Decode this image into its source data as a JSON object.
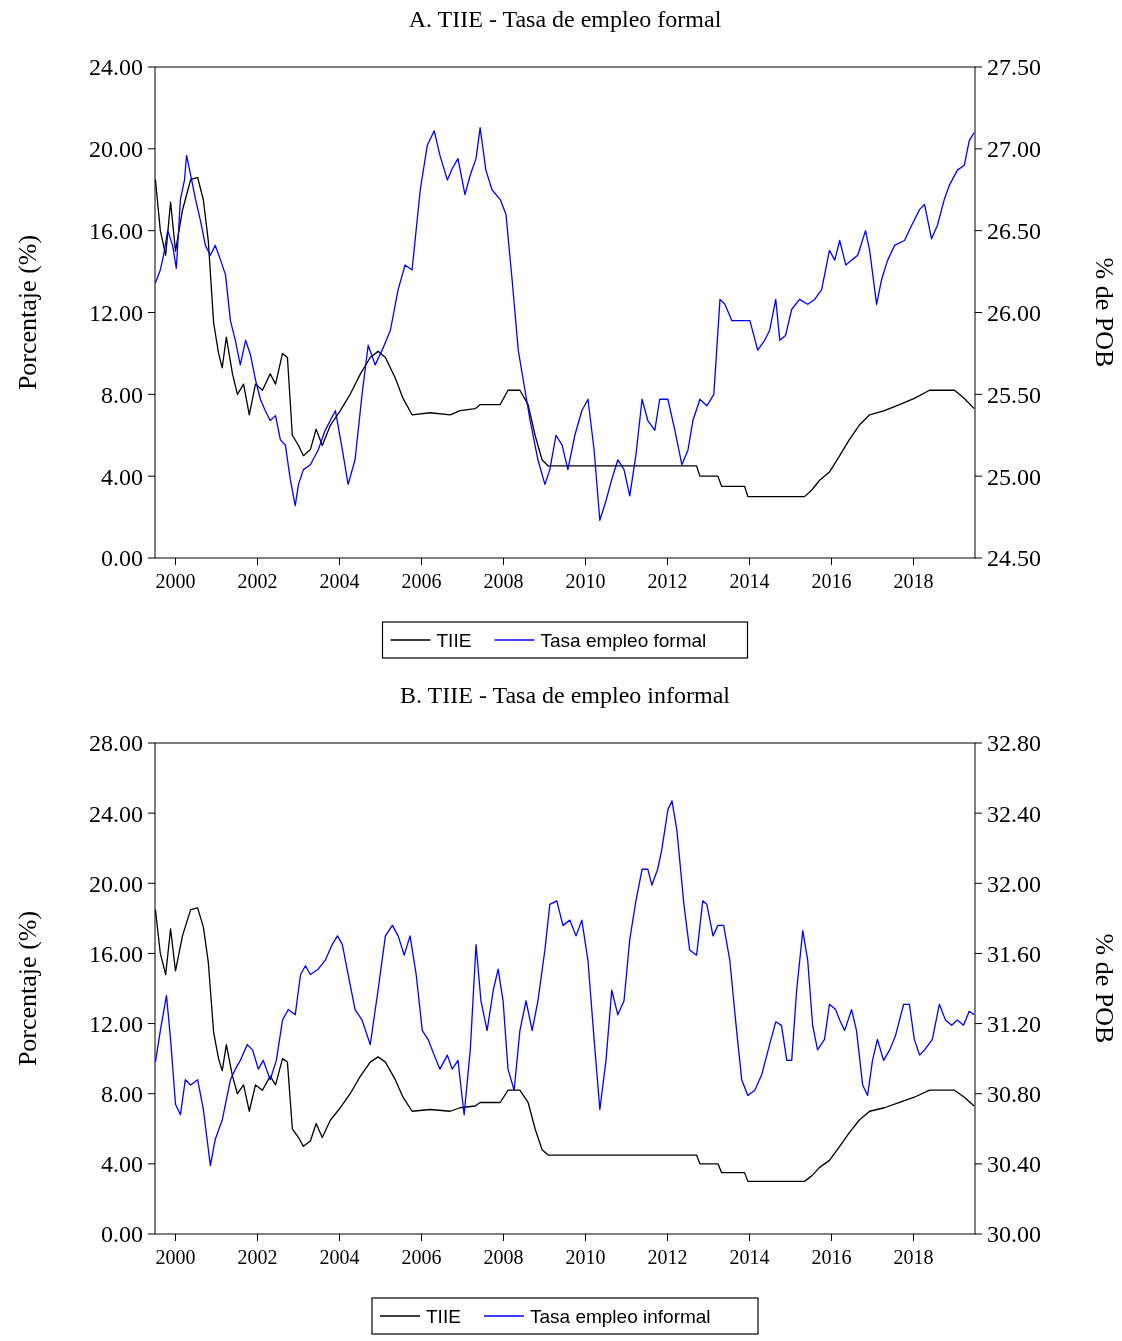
{
  "chart_data": [
    {
      "type": "line",
      "title": "A. TIIE - Tasa de empleo formal",
      "ylabel": "Porcentaje (%)",
      "y2label": "% de POB",
      "legend": "bottom",
      "grid": false,
      "line_style": "solid",
      "xlim": [
        1999.5,
        2019.5
      ],
      "xticks": [
        2000,
        2002,
        2004,
        2006,
        2008,
        2010,
        2012,
        2014,
        2016,
        2018
      ],
      "ylim": [
        0,
        24
      ],
      "yticks": [
        {
          "value": 0,
          "label": "0.00"
        },
        {
          "value": 4,
          "label": "4.00"
        },
        {
          "value": 8,
          "label": "8.00"
        },
        {
          "value": 12,
          "label": "12.00"
        },
        {
          "value": 16,
          "label": "16.00"
        },
        {
          "value": 20,
          "label": "20.00"
        },
        {
          "value": 24,
          "label": "24.00"
        }
      ],
      "y2lim": [
        24.5,
        27.5
      ],
      "y2ticks": [
        {
          "value": 24.5,
          "label": "24.50"
        },
        {
          "value": 25,
          "label": "25.00"
        },
        {
          "value": 25.5,
          "label": "25.50"
        },
        {
          "value": 26,
          "label": "26.00"
        },
        {
          "value": 26.5,
          "label": "26.50"
        },
        {
          "value": 27,
          "label": "27.00"
        },
        {
          "value": 27.5,
          "label": "27.50"
        }
      ],
      "series": [
        {
          "name": "TIIE",
          "color": "#000000",
          "x": [
            1999.51,
            1999.63,
            1999.76,
            1999.88,
            2000.0,
            2000.17,
            2000.37,
            2000.54,
            2000.68,
            2000.8,
            2000.93,
            2001.05,
            2001.14,
            2001.24,
            2001.39,
            2001.51,
            2001.66,
            2001.8,
            2001.95,
            2002.12,
            2002.31,
            2002.44,
            2002.61,
            2002.73,
            2002.85,
            2003.0,
            2003.12,
            2003.29,
            2003.43,
            2003.58,
            2003.78,
            2004.02,
            2004.26,
            2004.51,
            2004.75,
            2004.94,
            2005.12,
            2005.36,
            2005.55,
            2005.77,
            2006.21,
            2006.7,
            2006.94,
            2007.31,
            2007.43,
            2007.92,
            2008.11,
            2008.4,
            2008.6,
            2008.77,
            2008.94,
            2009.09,
            2012.71,
            2012.79,
            2013.23,
            2013.32,
            2013.88,
            2013.96,
            2015.34,
            2015.51,
            2015.71,
            2015.95,
            2016.2,
            2016.44,
            2016.68,
            2016.93,
            2017.29,
            2017.66,
            2018.02,
            2018.39,
            2019.0,
            2019.24,
            2019.48
          ],
          "values": [
            18.5,
            16,
            14.8,
            17.4,
            15,
            17,
            18.5,
            18.6,
            17.5,
            15.5,
            11.5,
            10,
            9.3,
            10.8,
            9,
            8,
            8.5,
            7,
            8.5,
            8.2,
            9,
            8.5,
            10,
            9.8,
            6,
            5.5,
            5,
            5.3,
            6.3,
            5.5,
            6.5,
            7.2,
            8,
            9,
            9.8,
            10.1,
            9.8,
            8.8,
            7.8,
            7,
            7.1,
            7,
            7.2,
            7.3,
            7.5,
            7.5,
            8.2,
            8.2,
            7.5,
            6,
            4.8,
            4.5,
            4.5,
            4,
            4,
            3.5,
            3.5,
            3,
            3,
            3.3,
            3.8,
            4.2,
            5,
            5.8,
            6.5,
            7,
            7.2,
            7.5,
            7.8,
            8.2,
            8.2,
            7.8,
            7.3
          ]
        },
        {
          "name": "Tasa empleo formal",
          "color": "#0000ff",
          "axis": "y2",
          "x": [
            1999.51,
            1999.63,
            1999.71,
            1999.81,
            1999.93,
            2000.02,
            2000.12,
            2000.22,
            2000.27,
            2000.37,
            2000.49,
            2000.61,
            2000.73,
            2000.85,
            2000.97,
            2001.1,
            2001.22,
            2001.34,
            2001.46,
            2001.58,
            2001.71,
            2001.83,
            2001.95,
            2002.07,
            2002.19,
            2002.31,
            2002.44,
            2002.56,
            2002.68,
            2002.8,
            2002.92,
            2003.0,
            2003.12,
            2003.29,
            2003.48,
            2003.65,
            2003.9,
            2004.07,
            2004.21,
            2004.38,
            2004.55,
            2004.7,
            2004.87,
            2005.04,
            2005.24,
            2005.43,
            2005.6,
            2005.77,
            2005.97,
            2006.14,
            2006.31,
            2006.45,
            2006.63,
            2006.75,
            2006.89,
            2007.06,
            2007.19,
            2007.33,
            2007.43,
            2007.57,
            2007.72,
            2007.92,
            2008.06,
            2008.21,
            2008.36,
            2008.5,
            2008.65,
            2008.84,
            2009.01,
            2009.13,
            2009.28,
            2009.43,
            2009.57,
            2009.74,
            2009.91,
            2010.06,
            2010.21,
            2010.35,
            2010.5,
            2010.64,
            2010.79,
            2010.94,
            2011.08,
            2011.23,
            2011.38,
            2011.52,
            2011.69,
            2011.81,
            2012.01,
            2012.18,
            2012.35,
            2012.5,
            2012.62,
            2012.79,
            2012.96,
            2013.13,
            2013.28,
            2013.4,
            2013.57,
            2013.76,
            2014.01,
            2014.2,
            2014.37,
            2014.49,
            2014.64,
            2014.74,
            2014.88,
            2015.03,
            2015.22,
            2015.42,
            2015.59,
            2015.76,
            2015.95,
            2016.08,
            2016.2,
            2016.35,
            2016.49,
            2016.64,
            2016.83,
            2016.93,
            2017.1,
            2017.22,
            2017.37,
            2017.54,
            2017.78,
            2017.95,
            2018.15,
            2018.27,
            2018.44,
            2018.58,
            2018.75,
            2018.88,
            2019.07,
            2019.24,
            2019.36,
            2019.48
          ],
          "values": [
            26.18,
            26.26,
            26.35,
            26.5,
            26.41,
            26.27,
            26.69,
            26.81,
            26.96,
            26.84,
            26.69,
            26.56,
            26.41,
            26.35,
            26.41,
            26.32,
            26.23,
            25.95,
            25.83,
            25.68,
            25.83,
            25.74,
            25.59,
            25.47,
            25.4,
            25.34,
            25.37,
            25.22,
            25.19,
            24.98,
            24.82,
            24.95,
            25.04,
            25.07,
            25.16,
            25.28,
            25.4,
            25.16,
            24.95,
            25.1,
            25.5,
            25.8,
            25.68,
            25.77,
            25.89,
            26.14,
            26.29,
            26.26,
            26.75,
            27.02,
            27.11,
            26.96,
            26.81,
            26.88,
            26.94,
            26.72,
            26.84,
            26.94,
            27.13,
            26.87,
            26.75,
            26.69,
            26.6,
            26.2,
            25.77,
            25.56,
            25.34,
            25.1,
            24.95,
            25.04,
            25.25,
            25.19,
            25.04,
            25.25,
            25.4,
            25.47,
            25.16,
            24.73,
            24.85,
            24.98,
            25.1,
            25.04,
            24.88,
            25.13,
            25.47,
            25.34,
            25.28,
            25.47,
            25.47,
            25.28,
            25.07,
            25.16,
            25.34,
            25.47,
            25.43,
            25.5,
            26.08,
            26.05,
            25.95,
            25.95,
            25.95,
            25.77,
            25.83,
            25.89,
            26.08,
            25.83,
            25.86,
            26.02,
            26.08,
            26.05,
            26.08,
            26.14,
            26.38,
            26.32,
            26.44,
            26.29,
            26.32,
            26.35,
            26.5,
            26.38,
            26.05,
            26.2,
            26.32,
            26.41,
            26.44,
            26.53,
            26.63,
            26.66,
            26.45,
            26.53,
            26.69,
            26.78,
            26.87,
            26.9,
            27.05,
            27.1
          ]
        }
      ]
    },
    {
      "type": "line",
      "title": "B. TIIE - Tasa de empleo informal",
      "ylabel": "Porcentaje (%)",
      "y2label": "% de POB",
      "legend": "bottom",
      "grid": false,
      "line_style": "solid",
      "xlim": [
        1999.5,
        2019.5
      ],
      "xticks": [
        2000,
        2002,
        2004,
        2006,
        2008,
        2010,
        2012,
        2014,
        2016,
        2018
      ],
      "ylim": [
        0,
        28
      ],
      "yticks": [
        {
          "value": 0,
          "label": "0.00"
        },
        {
          "value": 4,
          "label": "4.00"
        },
        {
          "value": 8,
          "label": "8.00"
        },
        {
          "value": 12,
          "label": "12.00"
        },
        {
          "value": 16,
          "label": "16.00"
        },
        {
          "value": 20,
          "label": "20.00"
        },
        {
          "value": 24,
          "label": "24.00"
        },
        {
          "value": 28,
          "label": "28.00"
        }
      ],
      "y2lim": [
        30,
        32.8
      ],
      "y2ticks": [
        {
          "value": 30,
          "label": "30.00"
        },
        {
          "value": 30.4,
          "label": "30.40"
        },
        {
          "value": 30.8,
          "label": "30.80"
        },
        {
          "value": 31.2,
          "label": "31.20"
        },
        {
          "value": 31.6,
          "label": "31.60"
        },
        {
          "value": 32,
          "label": "32.00"
        },
        {
          "value": 32.4,
          "label": "32.40"
        },
        {
          "value": 32.8,
          "label": "32.80"
        }
      ],
      "series": [
        {
          "name": "TIIE",
          "color": "#000000",
          "x": [
            1999.51,
            1999.63,
            1999.76,
            1999.88,
            2000.0,
            2000.17,
            2000.37,
            2000.54,
            2000.68,
            2000.8,
            2000.93,
            2001.05,
            2001.14,
            2001.24,
            2001.39,
            2001.51,
            2001.66,
            2001.8,
            2001.95,
            2002.12,
            2002.31,
            2002.44,
            2002.61,
            2002.73,
            2002.85,
            2003.0,
            2003.12,
            2003.29,
            2003.43,
            2003.58,
            2003.78,
            2004.02,
            2004.26,
            2004.51,
            2004.75,
            2004.94,
            2005.12,
            2005.36,
            2005.55,
            2005.77,
            2006.21,
            2006.7,
            2006.94,
            2007.31,
            2007.43,
            2007.92,
            2008.11,
            2008.4,
            2008.6,
            2008.77,
            2008.94,
            2009.09,
            2012.71,
            2012.79,
            2013.23,
            2013.32,
            2013.88,
            2013.96,
            2015.34,
            2015.51,
            2015.71,
            2015.95,
            2016.2,
            2016.44,
            2016.68,
            2016.93,
            2017.29,
            2017.66,
            2018.02,
            2018.39,
            2019.0,
            2019.24,
            2019.48
          ],
          "values": [
            18.5,
            16,
            14.8,
            17.4,
            15,
            17,
            18.5,
            18.6,
            17.5,
            15.5,
            11.5,
            10,
            9.3,
            10.8,
            9,
            8,
            8.5,
            7,
            8.5,
            8.2,
            9,
            8.5,
            10,
            9.8,
            6,
            5.5,
            5,
            5.3,
            6.3,
            5.5,
            6.5,
            7.2,
            8,
            9,
            9.8,
            10.1,
            9.8,
            8.8,
            7.8,
            7,
            7.1,
            7,
            7.2,
            7.3,
            7.5,
            7.5,
            8.2,
            8.2,
            7.5,
            6,
            4.8,
            4.5,
            4.5,
            4,
            4,
            3.5,
            3.5,
            3,
            3,
            3.3,
            3.8,
            4.2,
            5,
            5.8,
            6.5,
            7,
            7.2,
            7.5,
            7.8,
            8.2,
            8.2,
            7.8,
            7.3
          ]
        },
        {
          "name": "Tasa empleo informal",
          "color": "#0000ff",
          "axis": "y2",
          "x": [
            1999.51,
            1999.63,
            1999.78,
            1999.88,
            2000.0,
            2000.12,
            2000.24,
            2000.37,
            2000.54,
            2000.68,
            2000.85,
            2000.97,
            2001.14,
            2001.34,
            2001.46,
            2001.58,
            2001.75,
            2001.88,
            2002.02,
            2002.14,
            2002.31,
            2002.46,
            2002.61,
            2002.75,
            2002.92,
            2003.05,
            2003.17,
            2003.29,
            2003.48,
            2003.65,
            2003.82,
            2003.95,
            2004.07,
            2004.21,
            2004.38,
            2004.55,
            2004.75,
            2004.94,
            2005.12,
            2005.29,
            2005.43,
            2005.58,
            2005.72,
            2005.87,
            2006.02,
            2006.16,
            2006.31,
            2006.45,
            2006.63,
            2006.75,
            2006.89,
            2007.04,
            2007.19,
            2007.33,
            2007.45,
            2007.6,
            2007.75,
            2007.87,
            2007.99,
            2008.11,
            2008.26,
            2008.4,
            2008.55,
            2008.7,
            2008.84,
            2009.01,
            2009.13,
            2009.3,
            2009.45,
            2009.62,
            2009.77,
            2009.91,
            2010.06,
            2010.21,
            2010.35,
            2010.5,
            2010.64,
            2010.79,
            2010.94,
            2011.08,
            2011.23,
            2011.38,
            2011.52,
            2011.62,
            2011.76,
            2011.86,
            2012.01,
            2012.11,
            2012.23,
            2012.4,
            2012.54,
            2012.71,
            2012.86,
            2012.96,
            2013.11,
            2013.23,
            2013.37,
            2013.52,
            2013.66,
            2013.81,
            2013.96,
            2014.13,
            2014.3,
            2014.49,
            2014.64,
            2014.78,
            2014.91,
            2015.03,
            2015.15,
            2015.3,
            2015.42,
            2015.54,
            2015.66,
            2015.83,
            2015.95,
            2016.1,
            2016.2,
            2016.32,
            2016.49,
            2016.61,
            2016.76,
            2016.88,
            2017.0,
            2017.12,
            2017.27,
            2017.42,
            2017.56,
            2017.76,
            2017.9,
            2018.02,
            2018.15,
            2018.27,
            2018.46,
            2018.63,
            2018.78,
            2018.93,
            2019.07,
            2019.22,
            2019.36,
            2019.48
          ],
          "values": [
            30.98,
            31.16,
            31.36,
            31.11,
            30.74,
            30.68,
            30.88,
            30.85,
            30.88,
            30.71,
            30.39,
            30.54,
            30.65,
            30.88,
            30.94,
            30.99,
            31.08,
            31.05,
            30.94,
            30.99,
            30.88,
            30.99,
            31.22,
            31.28,
            31.25,
            31.48,
            31.53,
            31.48,
            31.51,
            31.56,
            31.65,
            31.7,
            31.65,
            31.48,
            31.28,
            31.22,
            31.08,
            31.39,
            31.7,
            31.76,
            31.7,
            31.59,
            31.7,
            31.48,
            31.16,
            31.11,
            31.02,
            30.94,
            31.02,
            30.94,
            30.99,
            30.68,
            31.05,
            31.65,
            31.33,
            31.16,
            31.39,
            31.51,
            31.33,
            30.94,
            30.82,
            31.16,
            31.33,
            31.16,
            31.33,
            31.62,
            31.88,
            31.9,
            31.76,
            31.79,
            31.7,
            31.79,
            31.56,
            31.11,
            30.71,
            30.99,
            31.39,
            31.25,
            31.33,
            31.68,
            31.9,
            32.08,
            32.08,
            31.99,
            32.08,
            32.19,
            32.42,
            32.47,
            32.3,
            31.88,
            31.62,
            31.59,
            31.9,
            31.88,
            31.7,
            31.76,
            31.76,
            31.56,
            31.22,
            30.88,
            30.79,
            30.82,
            30.91,
            31.08,
            31.21,
            31.19,
            30.99,
            30.99,
            31.39,
            31.73,
            31.56,
            31.19,
            31.05,
            31.11,
            31.31,
            31.28,
            31.22,
            31.16,
            31.28,
            31.16,
            30.85,
            30.79,
            30.99,
            31.11,
            30.99,
            31.05,
            31.13,
            31.31,
            31.31,
            31.11,
            31.02,
            31.05,
            31.11,
            31.31,
            31.22,
            31.19,
            31.22,
            31.19,
            31.27,
            31.25
          ]
        }
      ]
    }
  ]
}
